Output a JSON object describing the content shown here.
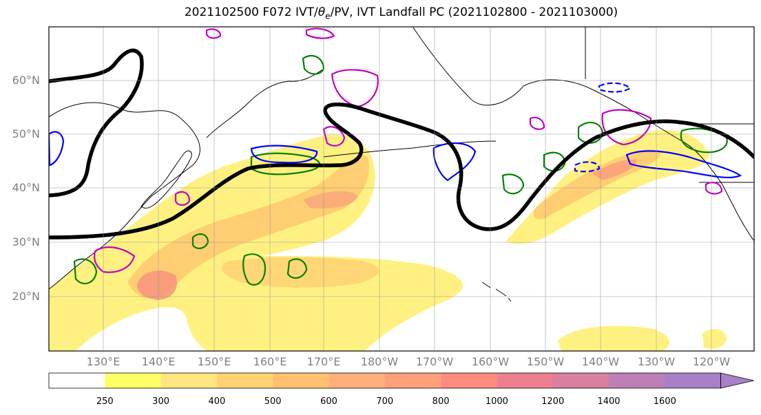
{
  "title": {
    "prefix": "2021102500 F072 IVT/",
    "theta": "θ",
    "theta_sub": "e",
    "suffix": "/PV, IVT Landfall PC (2021102800 - 2021103000)"
  },
  "lat_labels": [
    "60°N",
    "50°N",
    "40°N",
    "30°N",
    "20°N"
  ],
  "lon_labels": [
    "130°E",
    "140°E",
    "150°E",
    "160°E",
    "170°E",
    "180°W",
    "170°W",
    "160°W",
    "150°W",
    "140°W",
    "130°W",
    "120°W"
  ],
  "colorbar": {
    "ticks": [
      "250",
      "300",
      "400",
      "500",
      "600",
      "700",
      "800",
      "1000",
      "1200",
      "1400",
      "1600"
    ],
    "colors": [
      "#ffffff",
      "#ffff66",
      "#ffe680",
      "#ffd373",
      "#ffc070",
      "#ffb07a",
      "#ffa07a",
      "#ff8c7f",
      "#ee7f8f",
      "#d97fa0",
      "#bd80b6",
      "#a880c6"
    ]
  },
  "colors": {
    "ivt_low": "#fff07a",
    "ivt_mid": "#ffc56e",
    "ivt_high": "#f78b80",
    "pv_green": "#008000",
    "theta_blue": "#0000ff",
    "contour_magenta": "#c000c0",
    "landfall_pc": "#000000"
  }
}
